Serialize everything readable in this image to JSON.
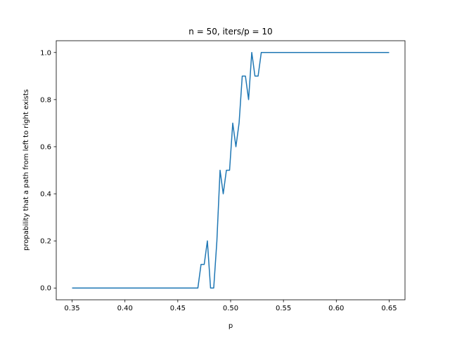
{
  "chart_data": {
    "type": "line",
    "title": "n = 50, iters/p = 10",
    "xlabel": "p",
    "ylabel": "propability that a path from left to right exists",
    "xlim": [
      0.335,
      0.665
    ],
    "ylim": [
      -0.05,
      1.05
    ],
    "grid": false,
    "line_color": "#1f77b4",
    "xticks": [
      {
        "value": 0.35,
        "label": "0.35"
      },
      {
        "value": 0.4,
        "label": "0.40"
      },
      {
        "value": 0.45,
        "label": "0.45"
      },
      {
        "value": 0.5,
        "label": "0.50"
      },
      {
        "value": 0.55,
        "label": "0.55"
      },
      {
        "value": 0.6,
        "label": "0.60"
      },
      {
        "value": 0.65,
        "label": "0.65"
      }
    ],
    "yticks": [
      {
        "value": 0.0,
        "label": "0.0"
      },
      {
        "value": 0.2,
        "label": "0.2"
      },
      {
        "value": 0.4,
        "label": "0.4"
      },
      {
        "value": 0.6,
        "label": "0.6"
      },
      {
        "value": 0.8,
        "label": "0.8"
      },
      {
        "value": 1.0,
        "label": "1.0"
      }
    ],
    "series": [
      {
        "x": [
          0.35,
          0.469,
          0.472,
          0.475,
          0.478,
          0.481,
          0.484,
          0.487,
          0.49,
          0.493,
          0.496,
          0.499,
          0.502,
          0.505,
          0.508,
          0.511,
          0.514,
          0.517,
          0.52,
          0.523,
          0.526,
          0.529,
          0.65
        ],
        "y": [
          0.0,
          0.0,
          0.1,
          0.1,
          0.2,
          0.0,
          0.0,
          0.2,
          0.5,
          0.4,
          0.5,
          0.5,
          0.7,
          0.6,
          0.7,
          0.9,
          0.9,
          0.8,
          1.0,
          0.9,
          0.9,
          1.0,
          1.0
        ]
      }
    ]
  }
}
